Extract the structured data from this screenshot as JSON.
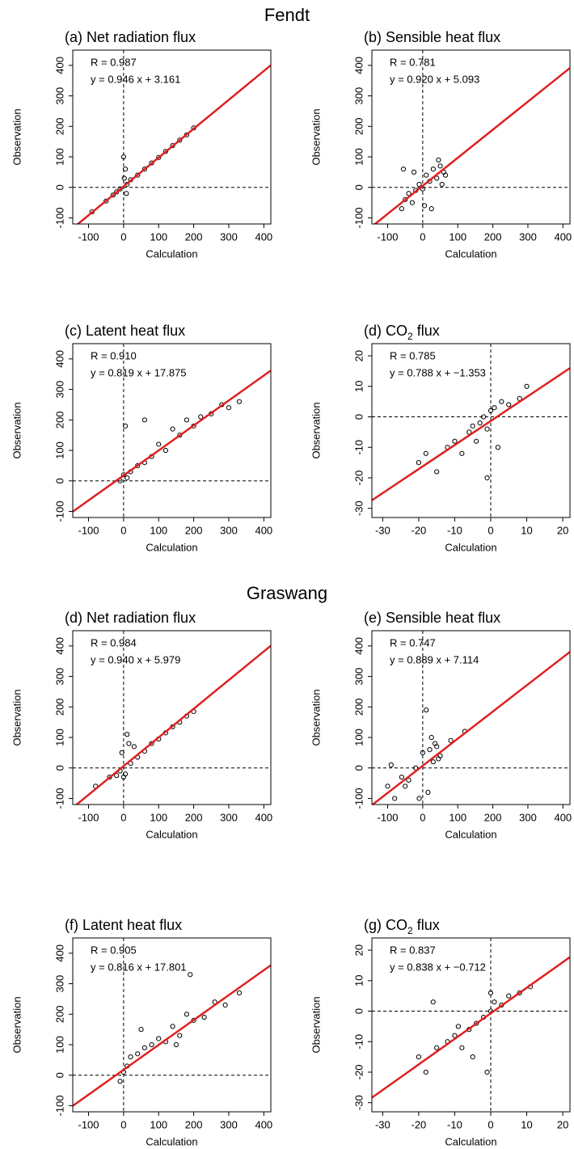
{
  "headings": [
    "Fendt",
    "Graswang"
  ],
  "chart_data": [
    {
      "type": "scatter",
      "title": [
        "(a) Net radiation flux"
      ],
      "annotations": [
        "R = 0.987",
        "y = 0.946 x + 3.161"
      ],
      "fit": {
        "slope": 0.946,
        "intercept": 3.161,
        "color": "#e02020"
      },
      "x_label": "Calculation",
      "y_label": "Observation",
      "xlim": [
        -145,
        420
      ],
      "ylim": [
        -120,
        450
      ],
      "xticks": [
        -100,
        0,
        100,
        200,
        300,
        400
      ],
      "yticks": [
        -100,
        0,
        100,
        200,
        300,
        400
      ],
      "hline": 0,
      "vline": 0,
      "color": "#000000",
      "x": [
        -90,
        -50,
        -30,
        -20,
        -10,
        0,
        5,
        10,
        20,
        40,
        60,
        80,
        100,
        120,
        140,
        160,
        180,
        200,
        2,
        8
      ],
      "y": [
        -80,
        -45,
        -25,
        -15,
        -5,
        100,
        60,
        10,
        25,
        40,
        60,
        80,
        98,
        118,
        137,
        155,
        172,
        195,
        30,
        -20
      ]
    },
    {
      "type": "scatter",
      "title": [
        "(b) Sensible heat flux"
      ],
      "annotations": [
        "R = 0.781",
        "y = 0.920 x + 5.093"
      ],
      "fit": {
        "slope": 0.92,
        "intercept": 5.093,
        "color": "#e02020"
      },
      "x_label": "Calculation",
      "y_label": "Observation",
      "xlim": [
        -145,
        420
      ],
      "ylim": [
        -120,
        450
      ],
      "xticks": [
        -100,
        0,
        100,
        200,
        300,
        400
      ],
      "yticks": [
        -100,
        0,
        100,
        200,
        300,
        400
      ],
      "hline": 0,
      "vline": 0,
      "color": "#000000",
      "x": [
        -60,
        -50,
        -40,
        -30,
        -20,
        -10,
        0,
        10,
        20,
        30,
        40,
        50,
        60,
        -55,
        -25,
        5,
        25,
        45,
        55,
        65
      ],
      "y": [
        -70,
        -40,
        -20,
        -50,
        -10,
        10,
        -5,
        40,
        20,
        60,
        30,
        70,
        50,
        60,
        50,
        -60,
        -70,
        90,
        10,
        40
      ]
    },
    {
      "type": "scatter",
      "title": [
        "(c) Latent heat flux"
      ],
      "annotations": [
        "R = 0.910",
        "y = 0.819 x + 17.875"
      ],
      "fit": {
        "slope": 0.819,
        "intercept": 17.875,
        "color": "#e02020"
      },
      "x_label": "Calculation",
      "y_label": "Observation",
      "xlim": [
        -145,
        420
      ],
      "ylim": [
        -120,
        450
      ],
      "xticks": [
        -100,
        0,
        100,
        200,
        300,
        400
      ],
      "yticks": [
        -100,
        0,
        100,
        200,
        300,
        400
      ],
      "hline": 0,
      "vline": 0,
      "color": "#000000",
      "x": [
        -10,
        0,
        5,
        10,
        20,
        40,
        60,
        80,
        100,
        120,
        140,
        160,
        180,
        200,
        220,
        250,
        280,
        300,
        330,
        60
      ],
      "y": [
        0,
        20,
        180,
        10,
        30,
        50,
        60,
        80,
        120,
        100,
        170,
        150,
        200,
        180,
        210,
        220,
        250,
        240,
        260,
        200
      ]
    },
    {
      "type": "scatter",
      "title": [
        "(d) CO",
        "2",
        " flux"
      ],
      "annotations": [
        "R = 0.785",
        "y = 0.788 x + −1.353"
      ],
      "fit": {
        "slope": 0.788,
        "intercept": -1.353,
        "color": "#e02020"
      },
      "x_label": "Calculation",
      "y_label": "Observation",
      "xlim": [
        -33,
        22
      ],
      "ylim": [
        -33,
        24
      ],
      "xticks": [
        -30,
        -20,
        -10,
        0,
        10,
        20
      ],
      "yticks": [
        -30,
        -20,
        -10,
        0,
        10,
        20
      ],
      "hline": 0,
      "vline": 0,
      "color": "#000000",
      "x": [
        -20,
        -18,
        -15,
        -12,
        -10,
        -8,
        -6,
        -5,
        -4,
        -3,
        -2,
        -1,
        0,
        1,
        2,
        3,
        5,
        8,
        10,
        -1
      ],
      "y": [
        -15,
        -12,
        -18,
        -10,
        -8,
        -12,
        -5,
        -3,
        -8,
        -2,
        0,
        -4,
        2,
        3,
        -10,
        5,
        4,
        6,
        10,
        -20
      ]
    },
    {
      "type": "scatter",
      "title": [
        "(d) Net radiation flux"
      ],
      "annotations": [
        "R = 0.984",
        "y = 0.940 x + 5.979"
      ],
      "fit": {
        "slope": 0.94,
        "intercept": 5.979,
        "color": "#e02020"
      },
      "x_label": "Calculation",
      "y_label": "Observation",
      "xlim": [
        -145,
        420
      ],
      "ylim": [
        -120,
        450
      ],
      "xticks": [
        -100,
        0,
        100,
        200,
        300,
        400
      ],
      "yticks": [
        -100,
        0,
        100,
        200,
        300,
        400
      ],
      "hline": 0,
      "vline": 0,
      "color": "#000000",
      "x": [
        -80,
        -40,
        -20,
        -10,
        0,
        10,
        20,
        40,
        60,
        80,
        100,
        120,
        140,
        160,
        180,
        200,
        -5,
        5,
        30,
        15
      ],
      "y": [
        -60,
        -30,
        -25,
        -10,
        -30,
        110,
        15,
        35,
        55,
        80,
        95,
        115,
        135,
        150,
        170,
        185,
        50,
        -20,
        70,
        80
      ]
    },
    {
      "type": "scatter",
      "title": [
        "(e) Sensible heat flux"
      ],
      "annotations": [
        "R = 0.747",
        "y = 0.889 x + 7.114"
      ],
      "fit": {
        "slope": 0.889,
        "intercept": 7.114,
        "color": "#e02020"
      },
      "x_label": "Calculation",
      "y_label": "Observation",
      "xlim": [
        -145,
        420
      ],
      "ylim": [
        -120,
        450
      ],
      "xticks": [
        -100,
        0,
        100,
        200,
        300,
        400
      ],
      "yticks": [
        -100,
        0,
        100,
        200,
        300,
        400
      ],
      "hline": 0,
      "vline": 0,
      "color": "#000000",
      "x": [
        -100,
        -80,
        -60,
        -40,
        -20,
        0,
        10,
        20,
        30,
        40,
        50,
        80,
        120,
        -10,
        15,
        35,
        -90,
        -50,
        25,
        45
      ],
      "y": [
        -60,
        -100,
        -30,
        -40,
        0,
        50,
        190,
        60,
        20,
        70,
        40,
        90,
        120,
        -100,
        -80,
        80,
        10,
        -60,
        100,
        30
      ]
    },
    {
      "type": "scatter",
      "title": [
        "(f) Latent heat flux"
      ],
      "annotations": [
        "R = 0.905",
        "y = 0.816 x + 17.801"
      ],
      "fit": {
        "slope": 0.816,
        "intercept": 17.801,
        "color": "#e02020"
      },
      "x_label": "Calculation",
      "y_label": "Observation",
      "xlim": [
        -145,
        420
      ],
      "ylim": [
        -120,
        450
      ],
      "xticks": [
        -100,
        0,
        100,
        200,
        300,
        400
      ],
      "yticks": [
        -100,
        0,
        100,
        200,
        300,
        400
      ],
      "hline": 0,
      "vline": 0,
      "color": "#000000",
      "x": [
        -10,
        0,
        10,
        20,
        40,
        60,
        80,
        100,
        120,
        140,
        160,
        180,
        190,
        200,
        230,
        260,
        290,
        330,
        50,
        150
      ],
      "y": [
        -20,
        10,
        30,
        60,
        70,
        90,
        100,
        120,
        110,
        160,
        130,
        200,
        330,
        180,
        190,
        240,
        230,
        270,
        150,
        100
      ]
    },
    {
      "type": "scatter",
      "title": [
        "(g) CO",
        "2",
        " flux"
      ],
      "annotations": [
        "R = 0.837",
        "y = 0.838 x + −0.712"
      ],
      "fit": {
        "slope": 0.838,
        "intercept": -0.712,
        "color": "#e02020"
      },
      "x_label": "Calculation",
      "y_label": "Observation",
      "xlim": [
        -33,
        22
      ],
      "ylim": [
        -33,
        24
      ],
      "xticks": [
        -30,
        -20,
        -10,
        0,
        10,
        20
      ],
      "yticks": [
        -30,
        -20,
        -10,
        0,
        10,
        20
      ],
      "hline": 0,
      "vline": 0,
      "color": "#000000",
      "x": [
        -20,
        -18,
        -15,
        -12,
        -10,
        -8,
        -6,
        -4,
        -2,
        0,
        1,
        3,
        5,
        8,
        11,
        -16,
        -5,
        -1,
        0,
        -9
      ],
      "y": [
        -15,
        -20,
        -12,
        -10,
        -8,
        -12,
        -6,
        -4,
        -2,
        0,
        3,
        2,
        5,
        6,
        8,
        3,
        -15,
        -20,
        6,
        -5
      ]
    }
  ]
}
